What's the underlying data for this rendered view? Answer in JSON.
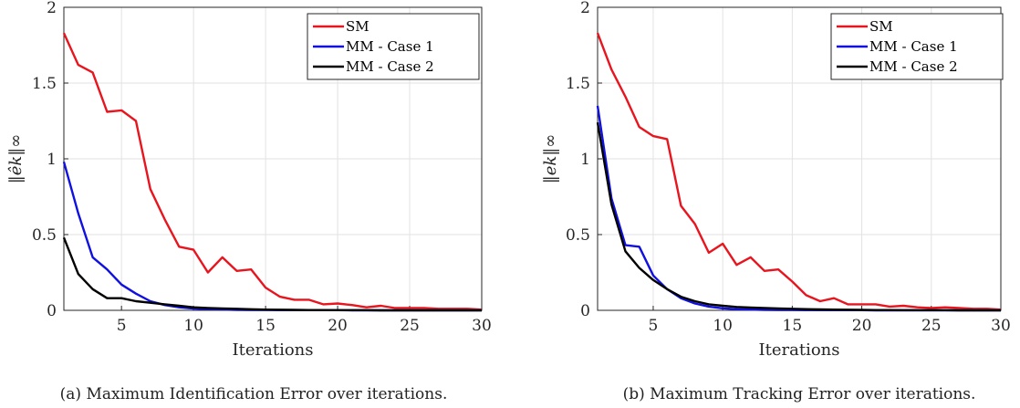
{
  "chart_data": [
    {
      "type": "line",
      "caption": "(a) Maximum Identification Error over iterations.",
      "xlabel": "Iterations",
      "ylabel": "‖êk‖∞",
      "xlim": [
        1,
        30
      ],
      "ylim": [
        0,
        2
      ],
      "xticks": [
        5,
        10,
        15,
        20,
        25,
        30
      ],
      "yticks": [
        0,
        0.5,
        1,
        1.5,
        2
      ],
      "ytick_labels": [
        "0",
        "0.5",
        "1",
        "1.5",
        "2"
      ],
      "grid": true,
      "legend_position": "top-right",
      "x": [
        1,
        2,
        3,
        4,
        5,
        6,
        7,
        8,
        9,
        10,
        11,
        12,
        13,
        14,
        15,
        16,
        17,
        18,
        19,
        20,
        21,
        22,
        23,
        24,
        25,
        26,
        27,
        28,
        29,
        30
      ],
      "series": [
        {
          "name": "SM",
          "color": "#e8141e",
          "values": [
            1.83,
            1.62,
            1.57,
            1.31,
            1.32,
            1.25,
            0.8,
            0.6,
            0.42,
            0.4,
            0.25,
            0.35,
            0.26,
            0.27,
            0.15,
            0.09,
            0.07,
            0.07,
            0.04,
            0.045,
            0.035,
            0.02,
            0.03,
            0.015,
            0.015,
            0.015,
            0.01,
            0.01,
            0.01,
            0.005
          ]
        },
        {
          "name": "MM - Case 1",
          "color": "#1010e0",
          "values": [
            0.98,
            0.64,
            0.35,
            0.27,
            0.17,
            0.11,
            0.06,
            0.035,
            0.02,
            0.012,
            0.008,
            0.005,
            0.003,
            0.002,
            0.002,
            0.001,
            0.001,
            0.001,
            0.001,
            0.001,
            0,
            0,
            0,
            0,
            0,
            0,
            0,
            0,
            0,
            0
          ]
        },
        {
          "name": "MM - Case 2",
          "color": "#000000",
          "values": [
            0.48,
            0.24,
            0.14,
            0.08,
            0.08,
            0.06,
            0.05,
            0.04,
            0.03,
            0.02,
            0.015,
            0.012,
            0.01,
            0.007,
            0.005,
            0.004,
            0.003,
            0.002,
            0.002,
            0.001,
            0.001,
            0.001,
            0,
            0,
            0,
            0,
            0,
            0,
            0,
            0
          ]
        }
      ]
    },
    {
      "type": "line",
      "caption": "(b) Maximum Tracking Error over iterations.",
      "xlabel": "Iterations",
      "ylabel": "‖ek‖∞",
      "xlim": [
        1,
        30
      ],
      "ylim": [
        0,
        2
      ],
      "xticks": [
        5,
        10,
        15,
        20,
        25,
        30
      ],
      "yticks": [
        0,
        0.5,
        1,
        1.5,
        2
      ],
      "ytick_labels": [
        "0",
        "0.5",
        "1",
        "1.5",
        "2"
      ],
      "grid": true,
      "legend_position": "top-right",
      "x": [
        1,
        2,
        3,
        4,
        5,
        6,
        7,
        8,
        9,
        10,
        11,
        12,
        13,
        14,
        15,
        16,
        17,
        18,
        19,
        20,
        21,
        22,
        23,
        24,
        25,
        26,
        27,
        28,
        29,
        30
      ],
      "series": [
        {
          "name": "SM",
          "color": "#e8141e",
          "values": [
            1.83,
            1.59,
            1.41,
            1.21,
            1.15,
            1.13,
            0.69,
            0.57,
            0.38,
            0.44,
            0.3,
            0.35,
            0.26,
            0.27,
            0.19,
            0.1,
            0.06,
            0.08,
            0.04,
            0.04,
            0.04,
            0.025,
            0.03,
            0.02,
            0.015,
            0.02,
            0.015,
            0.01,
            0.01,
            0.005
          ]
        },
        {
          "name": "MM - Case 1",
          "color": "#1010e0",
          "values": [
            1.35,
            0.74,
            0.43,
            0.42,
            0.23,
            0.14,
            0.08,
            0.045,
            0.025,
            0.013,
            0.008,
            0.005,
            0.003,
            0.002,
            0.002,
            0.001,
            0.001,
            0.001,
            0.001,
            0.001,
            0,
            0,
            0,
            0,
            0,
            0,
            0,
            0,
            0,
            0
          ]
        },
        {
          "name": "MM - Case 2",
          "color": "#000000",
          "values": [
            1.24,
            0.7,
            0.39,
            0.28,
            0.2,
            0.14,
            0.09,
            0.06,
            0.04,
            0.03,
            0.022,
            0.018,
            0.015,
            0.012,
            0.01,
            0.008,
            0.006,
            0.005,
            0.004,
            0.003,
            0.002,
            0.002,
            0.001,
            0.001,
            0.001,
            0.001,
            0,
            0,
            0,
            0
          ]
        }
      ]
    }
  ]
}
